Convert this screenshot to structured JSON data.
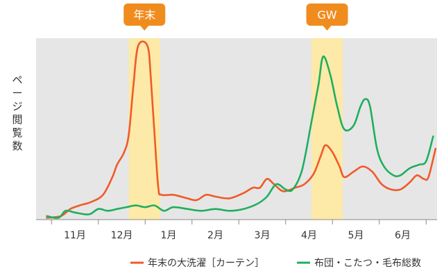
{
  "chart_data": {
    "type": "line",
    "ylabel": "ページ閲覧数",
    "xlabel": "",
    "title": "",
    "categories": [
      "11月",
      "12月",
      "1月",
      "2月",
      "3月",
      "4月",
      "5月",
      "6月"
    ],
    "x_range": [
      -0.65,
      7.8
    ],
    "ylim": [
      0,
      100
    ],
    "grid": false,
    "legend_position": "bottom-right",
    "series": [
      {
        "name": "年末の大洗濯［カーテン］",
        "color": "#f05a28",
        "points": [
          [
            -0.6,
            1
          ],
          [
            -0.3,
            2
          ],
          [
            -0.1,
            6
          ],
          [
            0.1,
            8
          ],
          [
            0.35,
            10
          ],
          [
            0.6,
            14
          ],
          [
            0.8,
            24
          ],
          [
            0.9,
            31
          ],
          [
            1.05,
            38
          ],
          [
            1.15,
            48
          ],
          [
            1.25,
            76
          ],
          [
            1.35,
            98
          ],
          [
            1.55,
            98
          ],
          [
            1.62,
            80
          ],
          [
            1.7,
            48
          ],
          [
            1.78,
            18
          ],
          [
            1.85,
            14
          ],
          [
            2.1,
            14
          ],
          [
            2.4,
            12
          ],
          [
            2.6,
            11
          ],
          [
            2.8,
            14
          ],
          [
            3.0,
            13
          ],
          [
            3.3,
            12
          ],
          [
            3.6,
            15
          ],
          [
            3.8,
            18
          ],
          [
            3.95,
            18
          ],
          [
            4.1,
            23
          ],
          [
            4.25,
            20
          ],
          [
            4.45,
            16
          ],
          [
            4.7,
            18
          ],
          [
            4.9,
            20
          ],
          [
            5.1,
            26
          ],
          [
            5.25,
            36
          ],
          [
            5.35,
            42
          ],
          [
            5.5,
            38
          ],
          [
            5.65,
            30
          ],
          [
            5.75,
            24
          ],
          [
            5.95,
            27
          ],
          [
            6.15,
            30
          ],
          [
            6.35,
            27
          ],
          [
            6.55,
            20
          ],
          [
            6.75,
            17
          ],
          [
            6.95,
            17
          ],
          [
            7.15,
            21
          ],
          [
            7.3,
            25
          ],
          [
            7.45,
            23
          ],
          [
            7.55,
            24
          ],
          [
            7.7,
            40
          ]
        ]
      },
      {
        "name": "布団・こたつ・毛布総数",
        "color": "#1fae5e",
        "points": [
          [
            -0.6,
            2
          ],
          [
            -0.35,
            1
          ],
          [
            -0.2,
            5
          ],
          [
            0.0,
            4
          ],
          [
            0.3,
            3
          ],
          [
            0.5,
            6
          ],
          [
            0.7,
            5
          ],
          [
            0.9,
            6
          ],
          [
            1.1,
            7
          ],
          [
            1.3,
            8
          ],
          [
            1.5,
            7
          ],
          [
            1.7,
            8
          ],
          [
            1.9,
            5
          ],
          [
            2.1,
            7
          ],
          [
            2.4,
            6
          ],
          [
            2.7,
            5
          ],
          [
            3.0,
            6
          ],
          [
            3.3,
            5
          ],
          [
            3.6,
            6
          ],
          [
            3.9,
            9
          ],
          [
            4.1,
            13
          ],
          [
            4.3,
            20
          ],
          [
            4.5,
            17
          ],
          [
            4.65,
            17
          ],
          [
            4.85,
            28
          ],
          [
            5.05,
            55
          ],
          [
            5.2,
            76
          ],
          [
            5.3,
            92
          ],
          [
            5.45,
            82
          ],
          [
            5.6,
            64
          ],
          [
            5.75,
            51
          ],
          [
            5.95,
            53
          ],
          [
            6.1,
            64
          ],
          [
            6.2,
            68
          ],
          [
            6.3,
            64
          ],
          [
            6.45,
            40
          ],
          [
            6.6,
            30
          ],
          [
            6.8,
            25
          ],
          [
            6.95,
            25
          ],
          [
            7.15,
            29
          ],
          [
            7.35,
            31
          ],
          [
            7.5,
            33
          ],
          [
            7.65,
            47
          ]
        ]
      }
    ],
    "highlights": [
      {
        "label": "年末",
        "from": 1.15,
        "to": 1.82
      },
      {
        "label": "GW",
        "from": 5.05,
        "to": 5.72
      }
    ]
  },
  "colors": {
    "plot_background": "#e6e6e6",
    "highlight_band": "#fde9a8",
    "callout": "#f08c1e",
    "axis": "#888888",
    "text": "#333333"
  }
}
